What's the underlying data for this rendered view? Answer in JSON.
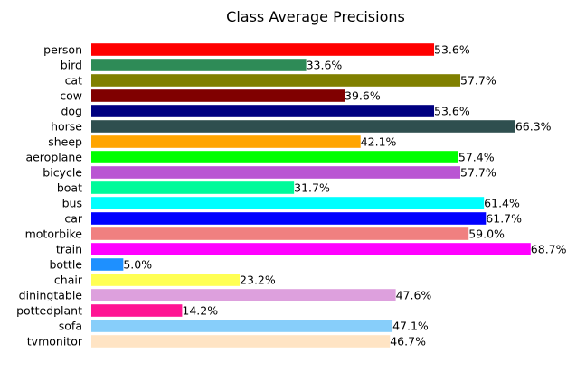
{
  "chart_data": {
    "type": "bar",
    "orientation": "horizontal",
    "title": "Class Average Precisions",
    "xlabel": "",
    "ylabel": "",
    "xlim": [
      0,
      0.7
    ],
    "grid": false,
    "categories": [
      "person",
      "bird",
      "cat",
      "cow",
      "dog",
      "horse",
      "sheep",
      "aeroplane",
      "bicycle",
      "boat",
      "bus",
      "car",
      "motorbike",
      "train",
      "bottle",
      "chair",
      "diningtable",
      "pottedplant",
      "sofa",
      "tvmonitor"
    ],
    "values": [
      0.536,
      0.336,
      0.577,
      0.396,
      0.536,
      0.663,
      0.421,
      0.574,
      0.577,
      0.317,
      0.614,
      0.617,
      0.59,
      0.687,
      0.05,
      0.232,
      0.476,
      0.142,
      0.471,
      0.467
    ],
    "data_labels": [
      "53.6%",
      "33.6%",
      "57.7%",
      "39.6%",
      "53.6%",
      "66.3%",
      "42.1%",
      "57.4%",
      "57.7%",
      "31.7%",
      "61.4%",
      "61.7%",
      "59.0%",
      "68.7%",
      "5.0%",
      "23.2%",
      "47.6%",
      "14.2%",
      "47.1%",
      "46.7%"
    ],
    "colors": [
      "#ff0000",
      "#2e8b57",
      "#808000",
      "#800000",
      "#000080",
      "#2f4f4f",
      "#ffa500",
      "#00ff00",
      "#ba55d3",
      "#00fa9a",
      "#00ffff",
      "#0000ff",
      "#f08080",
      "#ff00ff",
      "#1e90ff",
      "#ffff54",
      "#dda0dd",
      "#ff1493",
      "#87cefa",
      "#ffe4c4"
    ]
  }
}
